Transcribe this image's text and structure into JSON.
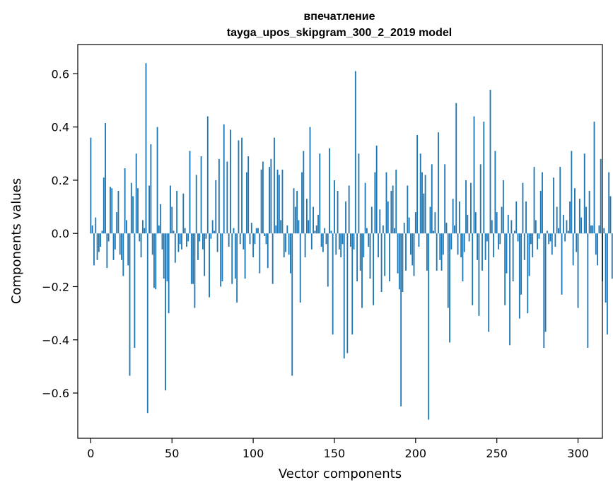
{
  "chart_data": {
    "type": "bar",
    "title": "впечатление",
    "subtitle": "tayga_upos_skipgram_300_2_2019 model",
    "xlabel": "Vector components",
    "ylabel": "Components values",
    "xlim": [
      -8,
      315
    ],
    "ylim": [
      -0.77,
      0.71
    ],
    "xticks": [
      0,
      50,
      100,
      150,
      200,
      250,
      300
    ],
    "yticks": [
      -0.6,
      -0.4,
      -0.2,
      0.0,
      0.2,
      0.4,
      0.6
    ],
    "xtick_labels": [
      "0",
      "50",
      "100",
      "150",
      "200",
      "250",
      "300"
    ],
    "ytick_labels": [
      "−0.6",
      "−0.4",
      "−0.2",
      "0.0",
      "0.2",
      "0.4",
      "0.6"
    ],
    "grid": false,
    "bar_color": "#1f77b4",
    "series": [
      {
        "values": [
          0.36,
          0.03,
          -0.12,
          0.06,
          -0.1,
          -0.07,
          -0.05,
          0.01,
          0.21,
          0.415,
          -0.13,
          -0.03,
          0.175,
          0.17,
          -0.1,
          -0.06,
          0.08,
          0.16,
          -0.08,
          -0.1,
          -0.16,
          0.245,
          0.05,
          -0.12,
          -0.535,
          0.19,
          0.14,
          -0.43,
          0.3,
          0.17,
          -0.03,
          -0.09,
          0.05,
          0.02,
          0.64,
          -0.675,
          0.18,
          0.335,
          -0.08,
          -0.205,
          -0.21,
          0.4,
          0.03,
          0.11,
          -0.06,
          -0.17,
          -0.59,
          -0.18,
          -0.3,
          0.18,
          0.1,
          0.01,
          -0.11,
          0.16,
          -0.07,
          -0.04,
          -0.06,
          0.15,
          0.02,
          -0.05,
          -0.03,
          0.31,
          -0.19,
          -0.19,
          -0.28,
          0.22,
          -0.1,
          -0.03,
          0.29,
          -0.06,
          -0.16,
          -0.02,
          0.44,
          -0.24,
          -0.02,
          0.05,
          0.01,
          0.2,
          -0.07,
          0.28,
          -0.2,
          -0.18,
          0.41,
          0.0,
          0.27,
          -0.05,
          0.39,
          -0.19,
          0.02,
          -0.17,
          -0.26,
          0.35,
          -0.04,
          0.36,
          -0.06,
          -0.17,
          0.23,
          0.29,
          -0.04,
          0.04,
          -0.09,
          -0.04,
          0.02,
          0.02,
          -0.15,
          0.24,
          0.27,
          -0.01,
          -0.04,
          -0.13,
          0.25,
          0.28,
          -0.19,
          0.36,
          0.03,
          0.24,
          0.22,
          0.05,
          0.24,
          -0.09,
          -0.07,
          0.03,
          -0.08,
          -0.15,
          -0.535,
          0.17,
          0.1,
          0.16,
          0.05,
          -0.26,
          0.23,
          0.31,
          -0.09,
          0.13,
          0.05,
          0.4,
          -0.06,
          0.1,
          0.01,
          0.03,
          0.07,
          0.3,
          -0.05,
          -0.07,
          0.02,
          -0.04,
          -0.2,
          0.32,
          0.01,
          -0.38,
          0.2,
          -0.08,
          0.16,
          -0.06,
          -0.09,
          -0.04,
          -0.47,
          0.12,
          -0.45,
          0.18,
          -0.05,
          -0.38,
          -0.06,
          0.61,
          -0.18,
          0.3,
          -0.14,
          -0.28,
          -0.09,
          0.19,
          0.02,
          -0.05,
          -0.17,
          0.1,
          -0.27,
          0.23,
          0.33,
          -0.09,
          0.09,
          -0.22,
          0.03,
          -0.16,
          0.23,
          0.12,
          -0.18,
          0.16,
          0.18,
          0.02,
          0.24,
          -0.15,
          -0.21,
          -0.65,
          -0.22,
          0.04,
          -0.14,
          0.18,
          0.06,
          -0.08,
          -0.12,
          -0.16,
          0.08,
          0.37,
          -0.05,
          0.3,
          0.23,
          0.15,
          0.22,
          -0.14,
          -0.7,
          0.1,
          0.26,
          0.01,
          0.08,
          -0.14,
          0.38,
          -0.1,
          -0.14,
          -0.08,
          0.26,
          0.04,
          -0.28,
          -0.41,
          -0.06,
          0.13,
          0.03,
          0.49,
          -0.08,
          0.12,
          -0.09,
          -0.18,
          -0.07,
          0.2,
          0.07,
          -0.03,
          0.19,
          -0.27,
          0.44,
          0.08,
          -0.1,
          -0.31,
          0.26,
          -0.14,
          0.42,
          -0.1,
          -0.03,
          -0.37,
          0.54,
          0.05,
          -0.09,
          0.31,
          0.08,
          -0.06,
          -0.04,
          0.1,
          0.2,
          -0.27,
          -0.15,
          0.07,
          -0.42,
          0.05,
          -0.18,
          0.01,
          0.12,
          -0.03,
          -0.32,
          -0.23,
          0.19,
          -0.1,
          0.12,
          -0.3,
          -0.16,
          -0.04,
          -0.09,
          0.25,
          0.05,
          -0.06,
          -0.02,
          0.16,
          0.23,
          -0.43,
          -0.37,
          0.01,
          -0.04,
          -0.03,
          -0.08,
          0.21,
          -0.05,
          0.1,
          0.02,
          0.25,
          -0.23,
          0.07,
          -0.03,
          0.05,
          0.01,
          0.12,
          0.31,
          -0.12,
          0.17,
          -0.07,
          -0.28,
          0.13,
          0.06,
          0.0,
          0.3,
          0.1,
          -0.43,
          0.16,
          0.03,
          0.03,
          0.42,
          -0.08,
          -0.12,
          0.03,
          0.28,
          -0.18,
          0.02,
          -0.26,
          -0.38,
          0.23,
          0.14,
          -0.17
        ]
      }
    ]
  }
}
